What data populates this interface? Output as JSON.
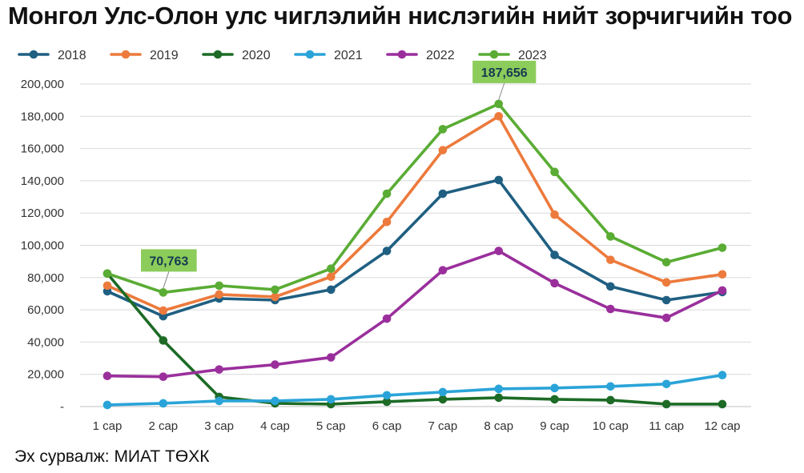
{
  "title": "Монгол Улс-Олон улс чиглэлийн нислэгийн нийт зорчигчийн тоо",
  "source": "Эх сурвалж: МИАТ ТӨХК",
  "chart_data": {
    "type": "line",
    "categories": [
      "1 сар",
      "2 сар",
      "3 сар",
      "4 сар",
      "5 сар",
      "6 сар",
      "7 сар",
      "8 сар",
      "9 сар",
      "10 сар",
      "11 сар",
      "12 сар"
    ],
    "series": [
      {
        "name": "2018",
        "color": "#1f5f82",
        "values": [
          71500,
          56000,
          67000,
          66000,
          72500,
          96500,
          132000,
          140500,
          94000,
          74500,
          66000,
          71000
        ]
      },
      {
        "name": "2019",
        "color": "#ec7a3c",
        "values": [
          75000,
          59500,
          69500,
          68000,
          80500,
          114500,
          159000,
          180000,
          119000,
          91000,
          77000,
          82000
        ]
      },
      {
        "name": "2020",
        "color": "#1d6b26",
        "values": [
          82500,
          41000,
          6000,
          2000,
          1500,
          3000,
          4500,
          5500,
          4500,
          4000,
          1500,
          1500
        ]
      },
      {
        "name": "2021",
        "color": "#2aa4d8",
        "values": [
          1000,
          2000,
          3500,
          3500,
          4500,
          7000,
          9000,
          11000,
          11500,
          12500,
          14000,
          19500
        ]
      },
      {
        "name": "2022",
        "color": "#9a2f9c",
        "values": [
          19000,
          18500,
          23000,
          26000,
          30500,
          54500,
          84500,
          96500,
          76500,
          60500,
          55000,
          72000
        ]
      },
      {
        "name": "2023",
        "color": "#5aac34",
        "values": [
          82500,
          70763,
          75000,
          72500,
          85500,
          132000,
          172000,
          187656,
          145500,
          105500,
          89500,
          98500
        ]
      }
    ],
    "yticks": [
      "-",
      "20,000",
      "40,000",
      "60,000",
      "80,000",
      "100,000",
      "120,000",
      "140,000",
      "160,000",
      "180,000",
      "200,000"
    ],
    "ylim": [
      0,
      200000
    ],
    "grid": true,
    "legend_position": "top",
    "annotations": [
      {
        "series": "2023",
        "category": "2 сар",
        "label": "70,763",
        "box_color": "#8ccc5a"
      },
      {
        "series": "2023",
        "category": "8 сар",
        "label": "187,656",
        "box_color": "#8ccc5a"
      }
    ]
  }
}
